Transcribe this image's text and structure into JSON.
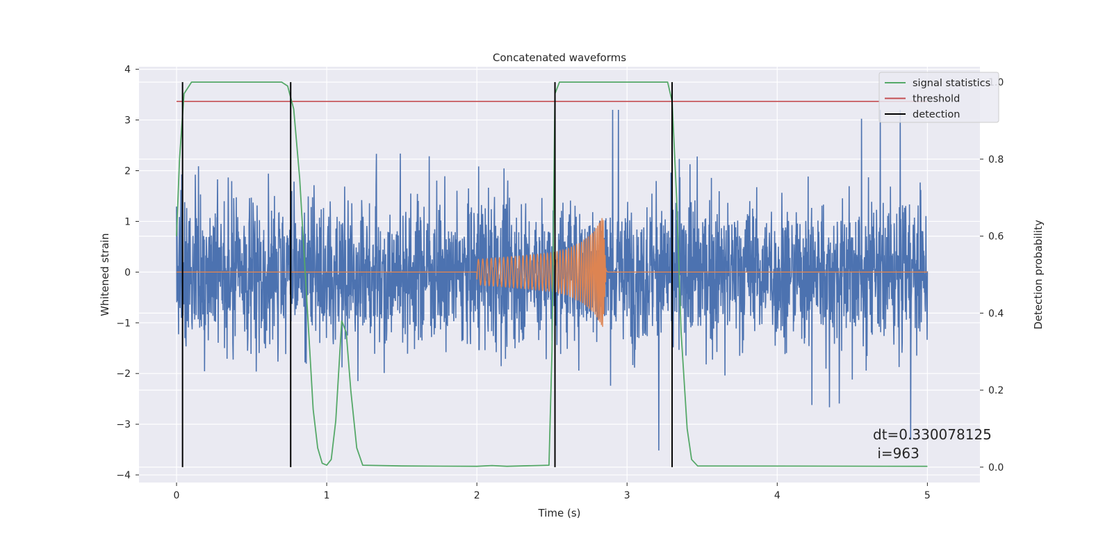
{
  "chart_data": {
    "type": "line",
    "title": "Concatenated waveforms",
    "xlabel": "Time (s)",
    "ylabel": "Whitened strain",
    "ylabel_right": "Detection probability",
    "xlim": [
      -0.25,
      5.35
    ],
    "ylim": [
      -4.15,
      4.05
    ],
    "ylim_right": [
      -0.04,
      1.04
    ],
    "x_ticks": [
      0,
      1,
      2,
      3,
      4,
      5
    ],
    "y_ticks": [
      -4,
      -3,
      -2,
      -1,
      0,
      1,
      2,
      3,
      4
    ],
    "y_right_ticks": [
      0.0,
      0.2,
      0.4,
      0.6,
      0.8,
      1.0
    ],
    "x_tick_labels": [
      "0",
      "1",
      "2",
      "3",
      "4",
      "5"
    ],
    "y_tick_labels": [
      "−4",
      "−3",
      "−2",
      "−1",
      "0",
      "1",
      "2",
      "3",
      "4"
    ],
    "y_right_tick_labels": [
      "0.0",
      "0.2",
      "0.4",
      "0.6",
      "0.8",
      "1.0"
    ],
    "grid": true,
    "legend_position": "top-right",
    "colors": {
      "background": "#eaeaf2",
      "grid": "#ffffff",
      "strain": "#4c72b0",
      "injection": "#dd8452",
      "signal_statistics": "#55a868",
      "threshold": "#c44e52",
      "detection": "#000000"
    },
    "series": [
      {
        "name": "signal statistics",
        "axis": "right",
        "points": [
          [
            0,
            0.6
          ],
          [
            0.02,
            0.8
          ],
          [
            0.05,
            0.97
          ],
          [
            0.1,
            1.0
          ],
          [
            0.7,
            1.0
          ],
          [
            0.74,
            0.99
          ],
          [
            0.78,
            0.93
          ],
          [
            0.82,
            0.75
          ],
          [
            0.85,
            0.55
          ],
          [
            0.88,
            0.35
          ],
          [
            0.91,
            0.15
          ],
          [
            0.94,
            0.05
          ],
          [
            0.97,
            0.01
          ],
          [
            1.0,
            0.005
          ],
          [
            1.03,
            0.02
          ],
          [
            1.06,
            0.12
          ],
          [
            1.1,
            0.38
          ],
          [
            1.13,
            0.35
          ],
          [
            1.16,
            0.2
          ],
          [
            1.2,
            0.05
          ],
          [
            1.24,
            0.005
          ],
          [
            1.5,
            0.003
          ],
          [
            2.0,
            0.002
          ],
          [
            2.1,
            0.004
          ],
          [
            2.2,
            0.002
          ],
          [
            2.48,
            0.005
          ],
          [
            2.5,
            0.3
          ],
          [
            2.52,
            0.97
          ],
          [
            2.55,
            1.0
          ],
          [
            3.27,
            1.0
          ],
          [
            3.3,
            0.95
          ],
          [
            3.33,
            0.7
          ],
          [
            3.36,
            0.35
          ],
          [
            3.4,
            0.1
          ],
          [
            3.43,
            0.02
          ],
          [
            3.47,
            0.003
          ],
          [
            5.0,
            0.002
          ]
        ]
      },
      {
        "name": "threshold",
        "axis": "right",
        "value": 0.95,
        "x_range": [
          0,
          5
        ]
      },
      {
        "name": "detection",
        "axis": "left",
        "x": [
          0.04,
          0.76,
          2.52,
          3.3
        ]
      },
      {
        "name": "whitened strain",
        "axis": "left",
        "x_range": [
          0,
          5
        ],
        "amplitude_typical": 1.0,
        "peak_range": [
          -3.8,
          3.2
        ]
      },
      {
        "name": "injected waveform",
        "axis": "left",
        "x_range": [
          2.0,
          2.86
        ],
        "envelope": [
          [
            2.0,
            0.25
          ],
          [
            2.3,
            0.32
          ],
          [
            2.5,
            0.38
          ],
          [
            2.6,
            0.45
          ],
          [
            2.7,
            0.6
          ],
          [
            2.78,
            0.8
          ],
          [
            2.84,
            1.1
          ],
          [
            2.86,
            0.05
          ]
        ]
      }
    ],
    "legend": [
      "signal statistics",
      "threshold",
      "detection"
    ],
    "annotation": [
      "dt=0.330078125",
      " i=963"
    ]
  }
}
